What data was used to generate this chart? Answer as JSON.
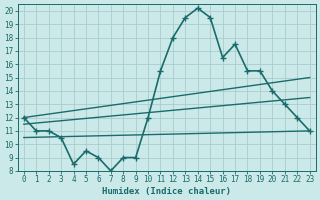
{
  "xlabel": "Humidex (Indice chaleur)",
  "ylabel": "",
  "xlim": [
    -0.5,
    23.5
  ],
  "ylim": [
    8,
    20.5
  ],
  "yticks": [
    8,
    9,
    10,
    11,
    12,
    13,
    14,
    15,
    16,
    17,
    18,
    19,
    20
  ],
  "xticks": [
    0,
    1,
    2,
    3,
    4,
    5,
    6,
    7,
    8,
    9,
    10,
    11,
    12,
    13,
    14,
    15,
    16,
    17,
    18,
    19,
    20,
    21,
    22,
    23
  ],
  "bg_color": "#cce9e9",
  "line_color": "#1a6b6b",
  "grid_color": "#b8d8d8",
  "lines": [
    {
      "x": [
        0,
        1,
        2,
        3,
        4,
        5,
        6,
        7,
        8,
        9,
        10,
        11,
        12,
        13,
        14,
        15,
        16,
        17,
        18,
        19,
        20,
        21,
        22,
        23
      ],
      "y": [
        12,
        11,
        11,
        10.5,
        8.5,
        9.5,
        9,
        8,
        9,
        9,
        12,
        15.5,
        18,
        19.5,
        20.2,
        19.5,
        16.5,
        17.5,
        15.5,
        15.5,
        14,
        13,
        12,
        11
      ],
      "has_marker": true,
      "linewidth": 1.2
    },
    {
      "x": [
        0,
        23
      ],
      "y": [
        12,
        15
      ],
      "has_marker": false,
      "linewidth": 1.0
    },
    {
      "x": [
        0,
        23
      ],
      "y": [
        11.5,
        13.5
      ],
      "has_marker": false,
      "linewidth": 1.0
    },
    {
      "x": [
        0,
        23
      ],
      "y": [
        10.5,
        11
      ],
      "has_marker": false,
      "linewidth": 1.0
    }
  ]
}
